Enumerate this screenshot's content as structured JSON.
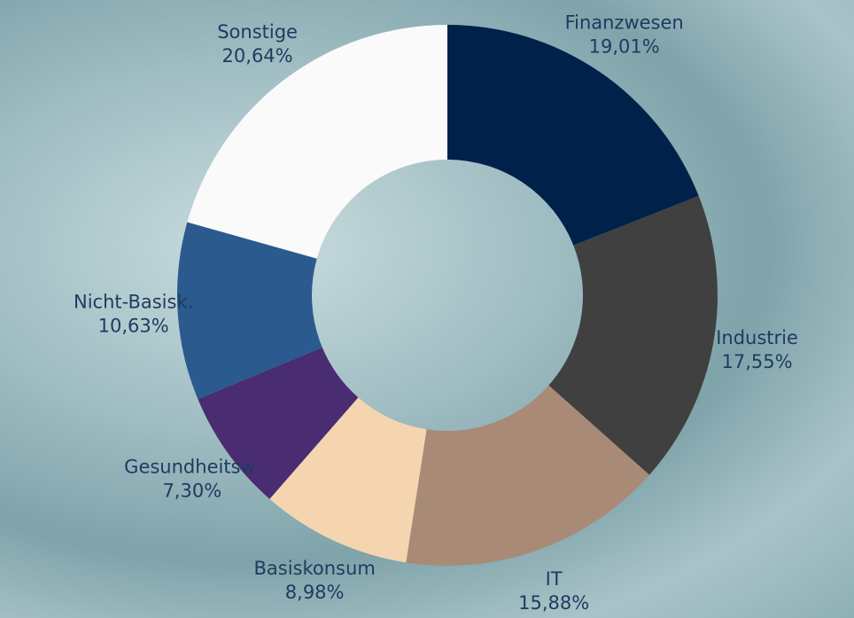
{
  "chart_data": {
    "type": "donut",
    "categories": [
      "Finanzwesen",
      "Industrie",
      "IT",
      "Basiskonsum",
      "Gesundheitsw.",
      "Nicht-Basisk.",
      "Sonstige"
    ],
    "values": [
      19.01,
      17.55,
      15.88,
      8.98,
      7.3,
      10.63,
      20.64
    ],
    "value_labels": [
      "19,01%",
      "17,55%",
      "15,88%",
      "8,98%",
      "7,30%",
      "10,63%",
      "20,64%"
    ],
    "colors": [
      "#00214a",
      "#404040",
      "#a98a76",
      "#f5d5b0",
      "#4a2c72",
      "#2a5a8e",
      "#fafafa"
    ]
  }
}
